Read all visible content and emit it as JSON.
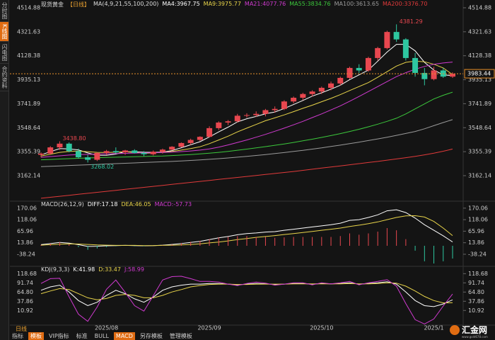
{
  "chart_data": [
    {
      "type": "candlestick",
      "title": "现货黄金",
      "period": "【日线】",
      "subtitle": "MA(4,9,21,55,100,200)",
      "categories": [
        null,
        null,
        null,
        null,
        null,
        null,
        null,
        "2025/08",
        null,
        null,
        null,
        null,
        null,
        null,
        null,
        null,
        null,
        null,
        "2025/09",
        null,
        null,
        null,
        null,
        null,
        null,
        null,
        null,
        null,
        null,
        null,
        "2025/10",
        null,
        null,
        null,
        null,
        null,
        null,
        null,
        null,
        null,
        null,
        null,
        "2025/1",
        null,
        null
      ],
      "open": [
        3330,
        3340,
        3390,
        3420,
        3360,
        3310,
        3290,
        3345,
        3360,
        3350,
        3365,
        3345,
        3335,
        3355,
        3372,
        3395,
        3425,
        3450,
        3475,
        3545,
        3590,
        3600,
        3645,
        3650,
        3660,
        3690,
        3700,
        3760,
        3790,
        3820,
        3840,
        3870,
        3905,
        3950,
        4030,
        4010,
        4110,
        4190,
        4320,
        4260,
        4110,
        3990,
        3940,
        4010,
        3960
      ],
      "high": [
        3350,
        3400,
        3438.8,
        3430,
        3380,
        3330,
        3350,
        3370,
        3390,
        3370,
        3375,
        3360,
        3365,
        3380,
        3400,
        3430,
        3460,
        3480,
        3560,
        3600,
        3610,
        3660,
        3665,
        3680,
        3700,
        3720,
        3770,
        3800,
        3830,
        3850,
        3880,
        3920,
        3960,
        4040,
        4060,
        4120,
        4200,
        4330,
        4381.29,
        4270,
        4150,
        4030,
        4040,
        4030,
        3995
      ],
      "low": [
        3310,
        3330,
        3370,
        3350,
        3300,
        3268.02,
        3280,
        3330,
        3340,
        3330,
        3340,
        3320,
        3325,
        3340,
        3365,
        3390,
        3410,
        3440,
        3470,
        3530,
        3570,
        3590,
        3630,
        3635,
        3640,
        3670,
        3690,
        3745,
        3770,
        3800,
        3820,
        3850,
        3890,
        3940,
        3990,
        4000,
        4090,
        4180,
        4240,
        4090,
        3960,
        3890,
        3930,
        3950,
        3950
      ],
      "close": [
        3340,
        3390,
        3420,
        3360,
        3310,
        3290,
        3345,
        3360,
        3350,
        3365,
        3345,
        3335,
        3355,
        3372,
        3395,
        3425,
        3450,
        3475,
        3545,
        3590,
        3600,
        3645,
        3650,
        3660,
        3690,
        3700,
        3760,
        3790,
        3820,
        3840,
        3870,
        3905,
        3950,
        4030,
        4010,
        4110,
        4190,
        4320,
        4260,
        4110,
        3990,
        3940,
        4010,
        3960,
        3983.44
      ],
      "up_color": "#e8474f",
      "down_color": "#2ec7a0",
      "series": [
        {
          "name": "MA4:3967.75",
          "color": "#ffffff",
          "values": [
            3330,
            3355,
            3380,
            3378,
            3370,
            3345,
            3326,
            3326,
            3336,
            3355,
            3354,
            3351,
            3350,
            3352,
            3364,
            3387,
            3411,
            3436,
            3474,
            3515,
            3553,
            3595,
            3621,
            3639,
            3661,
            3675,
            3703,
            3735,
            3768,
            3803,
            3830,
            3859,
            3891,
            3936,
            3974,
            4013,
            4085,
            4158,
            4220,
            4220,
            4168,
            4075,
            4013,
            3975,
            3967.75
          ]
        },
        {
          "name": "MA9:3975.77",
          "color": "#e8d44a",
          "values": [
            3320,
            3335,
            3350,
            3358,
            3360,
            3355,
            3350,
            3348,
            3352,
            3355,
            3350,
            3342,
            3345,
            3350,
            3358,
            3368,
            3380,
            3395,
            3420,
            3450,
            3480,
            3515,
            3545,
            3575,
            3605,
            3628,
            3652,
            3678,
            3705,
            3730,
            3758,
            3785,
            3815,
            3848,
            3880,
            3912,
            3955,
            4000,
            4045,
            4075,
            4085,
            4080,
            4060,
            4030,
            3975.77
          ]
        },
        {
          "name": "MA21:4077.76",
          "color": "#d03ad0",
          "values": [
            3310,
            3316,
            3322,
            3328,
            3332,
            3334,
            3336,
            3338,
            3340,
            3342,
            3344,
            3345,
            3347,
            3349,
            3352,
            3356,
            3361,
            3368,
            3378,
            3392,
            3410,
            3430,
            3450,
            3472,
            3495,
            3520,
            3545,
            3572,
            3600,
            3630,
            3660,
            3692,
            3725,
            3762,
            3800,
            3840,
            3880,
            3920,
            3960,
            3992,
            4020,
            4042,
            4060,
            4070,
            4077.76
          ]
        },
        {
          "name": "MA55:3834.76",
          "color": "#3cc83c",
          "values": [
            3290,
            3293,
            3296,
            3299,
            3302,
            3305,
            3307,
            3309,
            3311,
            3313,
            3315,
            3317,
            3319,
            3321,
            3324,
            3328,
            3332,
            3337,
            3343,
            3350,
            3358,
            3367,
            3376,
            3386,
            3396,
            3407,
            3418,
            3430,
            3443,
            3456,
            3470,
            3485,
            3501,
            3518,
            3536,
            3556,
            3577,
            3600,
            3625,
            3660,
            3700,
            3740,
            3780,
            3810,
            3834.76
          ]
        },
        {
          "name": "MA100:3613.65",
          "color": "#9a9a9a",
          "values": [
            3235,
            3238,
            3241,
            3244,
            3247,
            3250,
            3253,
            3256,
            3259,
            3262,
            3265,
            3268,
            3271,
            3274,
            3277,
            3281,
            3285,
            3289,
            3294,
            3299,
            3305,
            3311,
            3318,
            3325,
            3332,
            3340,
            3348,
            3357,
            3366,
            3376,
            3386,
            3397,
            3408,
            3420,
            3432,
            3445,
            3458,
            3472,
            3487,
            3502,
            3518,
            3540,
            3565,
            3590,
            3613.65
          ]
        },
        {
          "name": "MA200:3376.70",
          "color": "#e03a3a",
          "values": [
            2980,
            2988,
            2996,
            3004,
            3012,
            3020,
            3028,
            3036,
            3044,
            3052,
            3060,
            3068,
            3076,
            3084,
            3092,
            3100,
            3108,
            3116,
            3124,
            3132,
            3140,
            3148,
            3156,
            3164,
            3172,
            3180,
            3188,
            3196,
            3205,
            3214,
            3223,
            3232,
            3241,
            3250,
            3259,
            3268,
            3277,
            3287,
            3297,
            3307,
            3318,
            3330,
            3343,
            3359,
            3376.7
          ]
        }
      ],
      "ylim": [
        2968,
        4549
      ],
      "yticks": [
        4514.88,
        4321.63,
        4128.38,
        3935.13,
        3741.89,
        3548.64,
        3355.39,
        3162.14
      ],
      "extreme_labels": [
        {
          "value": 4381.29,
          "label": "4381.29"
        },
        {
          "value": 3438.8,
          "label": "3438.80"
        },
        {
          "value": 3268.02,
          "label": "3268.02"
        }
      ],
      "last_price": {
        "value": 3983.44,
        "label": "3983.44"
      },
      "last_price_color": "#e8902a"
    },
    {
      "type": "combo",
      "title": "MACD(26,12,9)",
      "series": [
        {
          "name": "DIFF:17.18",
          "color": "#ffffff",
          "kind": "line",
          "values": [
            5,
            10,
            15,
            12,
            5,
            -3,
            -2,
            0,
            1,
            2,
            1,
            0,
            1,
            3,
            6,
            10,
            15,
            20,
            28,
            36,
            42,
            50,
            55,
            58,
            62,
            64,
            70,
            75,
            80,
            85,
            90,
            95,
            102,
            115,
            118,
            128,
            140,
            158,
            163,
            150,
            125,
            95,
            70,
            45,
            17.18
          ]
        },
        {
          "name": "DEA:46.05",
          "color": "#e8d44a",
          "kind": "line",
          "values": [
            3,
            5,
            7,
            9,
            8,
            6,
            4,
            3,
            2,
            2,
            2,
            1,
            1,
            2,
            3,
            4,
            6,
            9,
            13,
            17,
            22,
            28,
            33,
            38,
            42,
            46,
            51,
            55,
            60,
            65,
            70,
            75,
            80,
            87,
            93,
            100,
            108,
            118,
            128,
            135,
            136,
            130,
            110,
            80,
            46.05
          ]
        },
        {
          "name": "MACD:-57.73",
          "color": "#d03ad0",
          "kind": "bar",
          "up_color": "#e8474f",
          "down_color": "#2ec7a0",
          "values": [
            4,
            10,
            16,
            6,
            -6,
            -18,
            -12,
            -6,
            -2,
            0,
            -2,
            -2,
            0,
            2,
            6,
            12,
            18,
            22,
            30,
            38,
            40,
            44,
            44,
            40,
            40,
            36,
            38,
            40,
            40,
            40,
            40,
            40,
            44,
            56,
            50,
            56,
            64,
            80,
            70,
            30,
            -22,
            -70,
            -80,
            -70,
            -57.73
          ]
        }
      ],
      "ylim": [
        -80,
        192
      ],
      "yticks": [
        170.06,
        118.06,
        65.96,
        13.86,
        -38.24
      ]
    },
    {
      "type": "line",
      "title": "KDJ(9,3,3)",
      "series": [
        {
          "name": "K:41.98",
          "color": "#ffffff",
          "values": [
            70,
            80,
            85,
            65,
            40,
            25,
            35,
            55,
            70,
            60,
            45,
            35,
            50,
            70,
            80,
            85,
            88,
            88,
            90,
            90,
            88,
            86,
            88,
            90,
            89,
            87,
            88,
            90,
            90,
            88,
            90,
            89,
            90,
            92,
            88,
            90,
            92,
            95,
            88,
            65,
            40,
            25,
            22,
            30,
            41.98
          ]
        },
        {
          "name": "D:33.47",
          "color": "#e8d44a",
          "values": [
            60,
            68,
            75,
            72,
            60,
            48,
            42,
            46,
            55,
            58,
            55,
            48,
            48,
            55,
            65,
            72,
            80,
            84,
            87,
            88,
            88,
            87,
            87,
            88,
            88,
            88,
            88,
            89,
            89,
            89,
            89,
            89,
            89,
            90,
            89,
            89,
            90,
            92,
            91,
            82,
            68,
            52,
            40,
            33,
            33.47
          ]
        },
        {
          "name": "J:58.99",
          "color": "#d03ad0",
          "values": [
            90,
            104,
            105,
            51,
            0,
            -21,
            21,
            73,
            100,
            64,
            25,
            9,
            54,
            100,
            110,
            111,
            104,
            96,
            96,
            94,
            88,
            84,
            90,
            94,
            91,
            85,
            88,
            92,
            92,
            86,
            92,
            89,
            92,
            96,
            86,
            92,
            96,
            101,
            82,
            31,
            -16,
            -29,
            -14,
            24,
            58.99
          ]
        }
      ],
      "ylim": [
        -30,
        136
      ],
      "yticks": [
        118.68,
        91.74,
        {
          "value": 64.8,
          "label": "64.80"
        },
        37.86,
        10.92
      ]
    }
  ],
  "ui": {
    "side_tabs": [
      "分时图",
      "K线图",
      "闪电图",
      "合约资料"
    ],
    "period": "日线",
    "bottom_tabs": [
      "指标",
      "模板",
      "VIP指标",
      "标准",
      "BULL",
      "MACD",
      "另存模板",
      "管理模板"
    ],
    "logo": "汇金网",
    "logo_sub": "www.gold678.com"
  }
}
